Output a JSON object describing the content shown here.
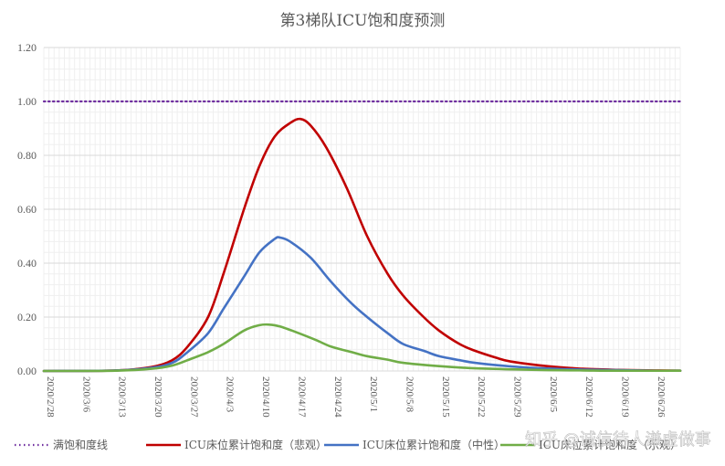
{
  "chart_data": {
    "type": "line",
    "title": "第3梯队ICU饱和度预测",
    "xlabel": "",
    "ylabel": "",
    "ylim": [
      0,
      1.2
    ],
    "yticks": [
      "0.00",
      "0.20",
      "0.40",
      "0.60",
      "0.80",
      "1.00",
      "1.20"
    ],
    "grid": true,
    "legend_position": "bottom",
    "x_tick_labels": [
      "2020/2/28",
      "2020/3/6",
      "2020/3/13",
      "2020/3/20",
      "2020/3/27",
      "2020/4/3",
      "2020/4/10",
      "2020/4/17",
      "2020/4/24",
      "2020/5/1",
      "2020/5/8",
      "2020/5/15",
      "2020/5/22",
      "2020/5/29",
      "2020/6/5",
      "2020/6/12",
      "2020/6/19",
      "2020/6/26"
    ],
    "x_start": "2020/2/28",
    "x_end": "2020/7/1",
    "series": [
      {
        "name": "满饱和度线",
        "color": "#7030a0",
        "style": "dotted",
        "points": [
          [
            "2020/2/28",
            1.0
          ],
          [
            "2020/7/1",
            1.0
          ]
        ]
      },
      {
        "name": "ICU床位累计饱和度（悲观）",
        "color": "#c00000",
        "style": "solid",
        "points": [
          [
            "2020/2/28",
            0
          ],
          [
            "2020/3/13",
            0.002
          ],
          [
            "2020/3/20",
            0.015
          ],
          [
            "2020/3/24",
            0.04
          ],
          [
            "2020/3/27",
            0.09
          ],
          [
            "2020/3/31",
            0.2
          ],
          [
            "2020/4/3",
            0.36
          ],
          [
            "2020/4/7",
            0.6
          ],
          [
            "2020/4/10",
            0.76
          ],
          [
            "2020/4/13",
            0.87
          ],
          [
            "2020/4/16",
            0.92
          ],
          [
            "2020/4/18",
            0.935
          ],
          [
            "2020/4/20",
            0.91
          ],
          [
            "2020/4/23",
            0.83
          ],
          [
            "2020/4/27",
            0.68
          ],
          [
            "2020/5/1",
            0.5
          ],
          [
            "2020/5/5",
            0.36
          ],
          [
            "2020/5/8",
            0.28
          ],
          [
            "2020/5/12",
            0.2
          ],
          [
            "2020/5/15",
            0.15
          ],
          [
            "2020/5/19",
            0.1
          ],
          [
            "2020/5/22",
            0.075
          ],
          [
            "2020/5/26",
            0.05
          ],
          [
            "2020/5/29",
            0.035
          ],
          [
            "2020/6/5",
            0.018
          ],
          [
            "2020/6/12",
            0.008
          ],
          [
            "2020/6/19",
            0.004
          ],
          [
            "2020/6/26",
            0.002
          ],
          [
            "2020/7/1",
            0.001
          ]
        ]
      },
      {
        "name": "ICU床位累计饱和度（中性）",
        "color": "#4472c4",
        "style": "solid",
        "points": [
          [
            "2020/2/28",
            0
          ],
          [
            "2020/3/13",
            0.002
          ],
          [
            "2020/3/20",
            0.012
          ],
          [
            "2020/3/24",
            0.03
          ],
          [
            "2020/3/27",
            0.07
          ],
          [
            "2020/3/31",
            0.14
          ],
          [
            "2020/4/3",
            0.23
          ],
          [
            "2020/4/7",
            0.35
          ],
          [
            "2020/4/10",
            0.44
          ],
          [
            "2020/4/13",
            0.49
          ],
          [
            "2020/4/14",
            0.495
          ],
          [
            "2020/4/16",
            0.48
          ],
          [
            "2020/4/20",
            0.42
          ],
          [
            "2020/4/24",
            0.33
          ],
          [
            "2020/4/28",
            0.25
          ],
          [
            "2020/5/1",
            0.2
          ],
          [
            "2020/5/5",
            0.14
          ],
          [
            "2020/5/8",
            0.1
          ],
          [
            "2020/5/12",
            0.075
          ],
          [
            "2020/5/15",
            0.055
          ],
          [
            "2020/5/19",
            0.04
          ],
          [
            "2020/5/22",
            0.03
          ],
          [
            "2020/5/29",
            0.017
          ],
          [
            "2020/6/5",
            0.009
          ],
          [
            "2020/6/12",
            0.005
          ],
          [
            "2020/6/19",
            0.003
          ],
          [
            "2020/6/26",
            0.001
          ],
          [
            "2020/7/1",
            0.001
          ]
        ]
      },
      {
        "name": "ICU床位累计饱和度（乐观）",
        "color": "#70ad47",
        "style": "solid",
        "points": [
          [
            "2020/2/28",
            0
          ],
          [
            "2020/3/13",
            0.001
          ],
          [
            "2020/3/20",
            0.008
          ],
          [
            "2020/3/24",
            0.02
          ],
          [
            "2020/3/27",
            0.04
          ],
          [
            "2020/3/31",
            0.07
          ],
          [
            "2020/4/3",
            0.1
          ],
          [
            "2020/4/7",
            0.15
          ],
          [
            "2020/4/10",
            0.17
          ],
          [
            "2020/4/12",
            0.172
          ],
          [
            "2020/4/14",
            0.165
          ],
          [
            "2020/4/17",
            0.145
          ],
          [
            "2020/4/21",
            0.115
          ],
          [
            "2020/4/24",
            0.09
          ],
          [
            "2020/4/28",
            0.07
          ],
          [
            "2020/5/1",
            0.055
          ],
          [
            "2020/5/5",
            0.042
          ],
          [
            "2020/5/8",
            0.03
          ],
          [
            "2020/5/15",
            0.018
          ],
          [
            "2020/5/22",
            0.01
          ],
          [
            "2020/5/29",
            0.006
          ],
          [
            "2020/6/5",
            0.003
          ],
          [
            "2020/6/12",
            0.002
          ],
          [
            "2020/6/19",
            0.001
          ],
          [
            "2020/7/1",
            0.001
          ]
        ]
      }
    ]
  },
  "watermark": "知乎 @诚信待人谦虚做事"
}
